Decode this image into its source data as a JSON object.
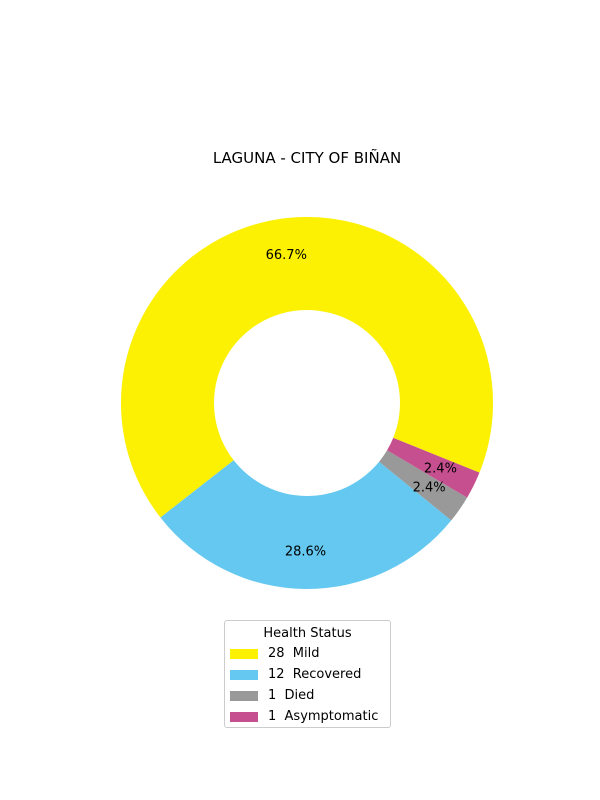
{
  "chart_data": {
    "type": "pie",
    "donut": true,
    "title": "LAGUNA - CITY OF BIÑAN",
    "legend_title": "Health Status",
    "legend_position": "bottom-center",
    "slices": [
      {
        "label": "Mild",
        "value": 28,
        "legend": "28  Mild",
        "percent_label": "66.7%",
        "color": "#FCF003"
      },
      {
        "label": "Recovered",
        "value": 12,
        "legend": "12  Recovered",
        "percent_label": "28.6%",
        "color": "#64C8F0"
      },
      {
        "label": "Died",
        "value": 1,
        "legend": "1  Died",
        "percent_label": "2.4%",
        "color": "#999999"
      },
      {
        "label": "Asymptomatic",
        "value": 1,
        "legend": "1  Asymptomatic",
        "percent_label": "2.4%",
        "color": "#C64F8F"
      }
    ]
  }
}
